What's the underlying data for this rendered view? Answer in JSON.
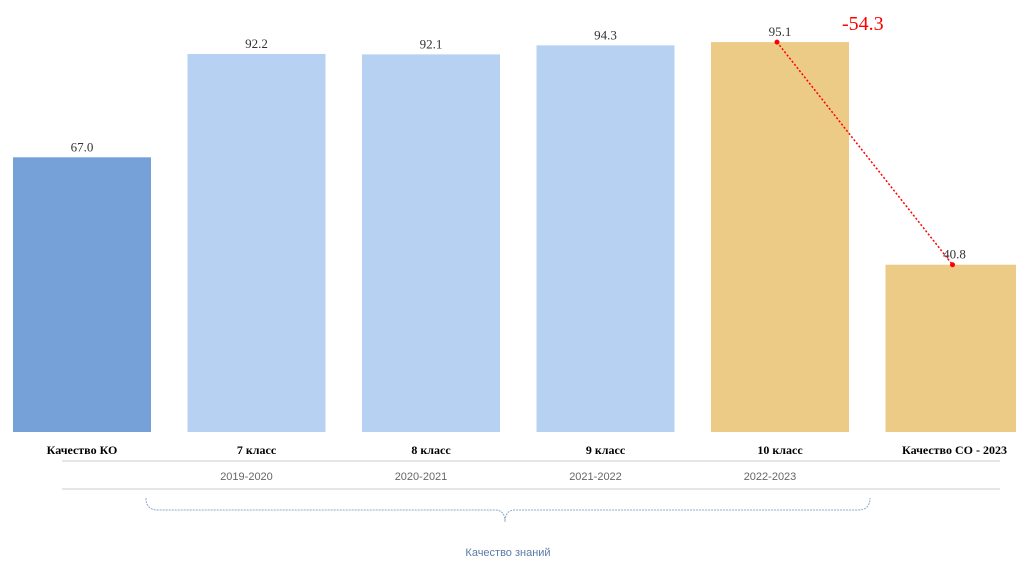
{
  "chart_data": {
    "type": "bar",
    "categories": [
      "Качество КО",
      "7 класс",
      "8 класс",
      "9 класс",
      "10 класс",
      "Качество СО - 2023"
    ],
    "values": [
      67.0,
      92.2,
      92.1,
      94.3,
      95.1,
      40.8
    ],
    "value_labels": [
      "67.0",
      "92.2",
      "92.1",
      "94.3",
      "95.1",
      "40.8"
    ],
    "bar_colors": [
      "#76a1d8",
      "#b6d1f1",
      "#b6d1f1",
      "#b6d1f1",
      "#eccb86",
      "#eccb86"
    ],
    "year_labels": [
      "2019-2020",
      "2020-2021",
      "2021-2022",
      "2022-2023"
    ],
    "group_label": "Качество знаний",
    "ylim": [
      0,
      100
    ],
    "grid": false,
    "annotation": {
      "text": "-54.3",
      "from_category": "10 класс",
      "to_category": "Качество СО - 2023",
      "color": "#ff0000"
    }
  }
}
